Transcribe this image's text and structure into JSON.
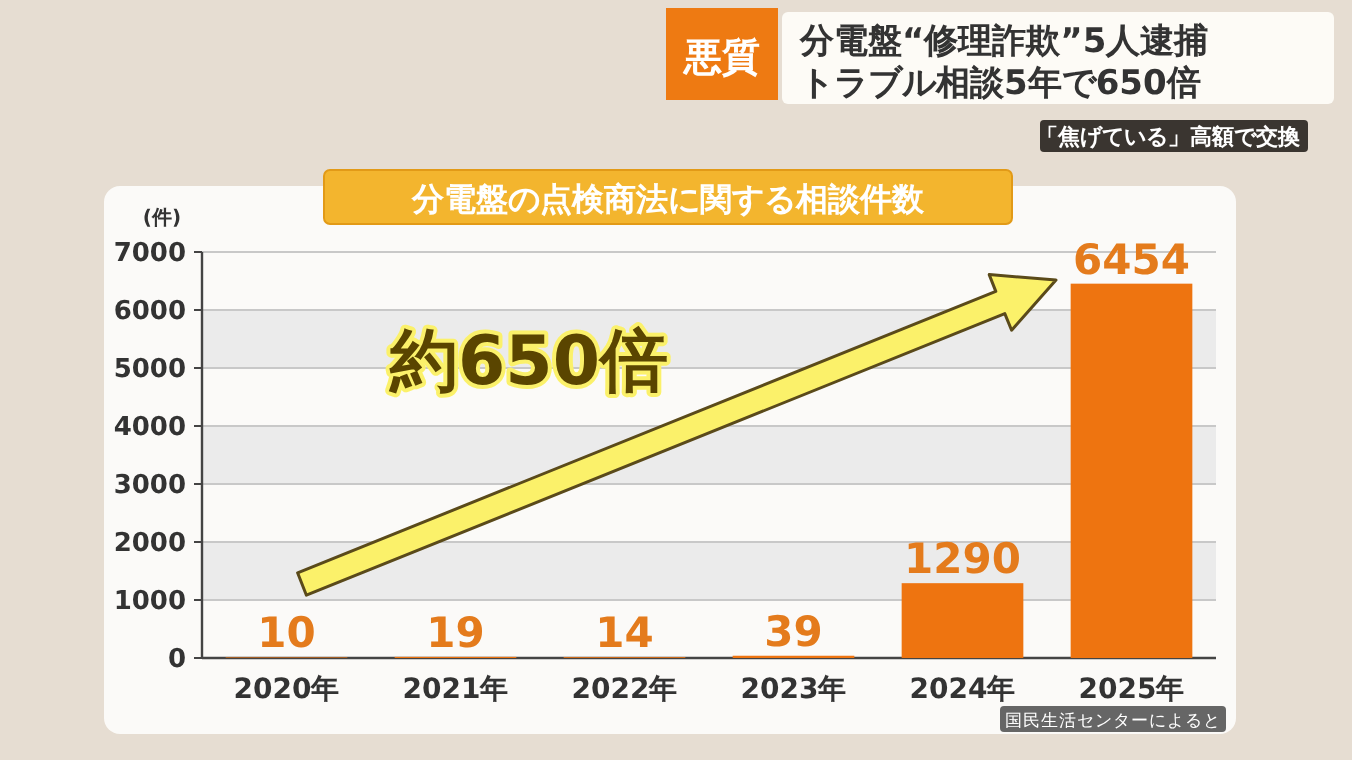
{
  "chart_data": {
    "type": "bar",
    "title": "分電盤の点検商法に関する相談件数",
    "ylabel": "(件)",
    "categories": [
      "2020年",
      "2021年",
      "2022年",
      "2023年",
      "2024年",
      "2025年"
    ],
    "values": [
      10,
      19,
      14,
      39,
      1290,
      6454
    ],
    "color": "#ee7410",
    "ylim": [
      0,
      7000
    ],
    "yticks": [
      0,
      1000,
      2000,
      3000,
      4000,
      5000,
      6000,
      7000
    ],
    "grid": "y",
    "data_labels": true,
    "annotations": [
      "約650倍",
      "国民生活センターによると",
      "悪質",
      "分電盤“修理詐欺”5人逮捕",
      "トラブル相談5年で650倍",
      "「焦げている」高額で交換"
    ]
  }
}
